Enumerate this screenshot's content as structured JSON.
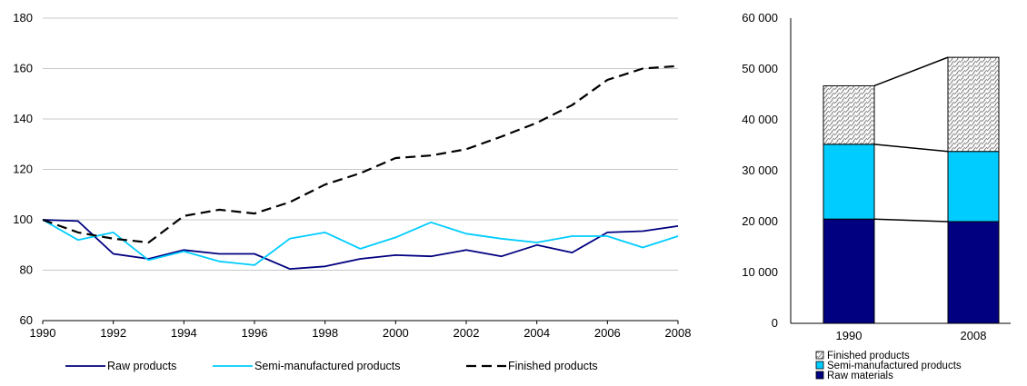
{
  "chart_data": [
    {
      "type": "line",
      "title": "",
      "xlabel": "",
      "ylabel": "",
      "ylim": [
        60,
        180
      ],
      "xlim": [
        1990,
        2008
      ],
      "grid": "horizontal",
      "legend_position": "bottom",
      "y_ticks": [
        "60",
        "80",
        "100",
        "120",
        "140",
        "160",
        "180"
      ],
      "x_ticks": [
        "1990",
        "1992",
        "1994",
        "1996",
        "1998",
        "2000",
        "2002",
        "2004",
        "2006",
        "2008"
      ],
      "x": [
        1990,
        1991,
        1992,
        1993,
        1994,
        1995,
        1996,
        1997,
        1998,
        1999,
        2000,
        2001,
        2002,
        2003,
        2004,
        2005,
        2006,
        2007,
        2008
      ],
      "series": [
        {
          "name": "Raw products",
          "color": "#000080",
          "style": "solid",
          "values": [
            100,
            99.5,
            86.5,
            84.5,
            88,
            86.5,
            86.5,
            80.5,
            81.5,
            84.5,
            86,
            85.5,
            88,
            85.5,
            90,
            87,
            95,
            95.5,
            97.5
          ]
        },
        {
          "name": "Semi-manufactured products",
          "color": "#00ccff",
          "style": "solid",
          "values": [
            100,
            92,
            95,
            84,
            87.5,
            83.5,
            82,
            92.5,
            95,
            88.5,
            93,
            99,
            94.5,
            92.5,
            91,
            93.5,
            93.5,
            89,
            93.5
          ]
        },
        {
          "name": "Finished products",
          "color": "#000000",
          "style": "dashed",
          "values": [
            100,
            95,
            92.5,
            91,
            101.5,
            104,
            102.5,
            107,
            114,
            118.5,
            124.5,
            125.5,
            128,
            133,
            138.5,
            145.5,
            155.5,
            160,
            161
          ]
        }
      ]
    },
    {
      "type": "bar",
      "stacked": true,
      "title": "",
      "xlabel": "",
      "ylabel": "",
      "ylim": [
        0,
        60000
      ],
      "grid": "none",
      "legend_position": "bottom",
      "y_ticks": [
        "0",
        "10 000",
        "20 000",
        "30 000",
        "40 000",
        "50 000",
        "60 000"
      ],
      "categories": [
        "1990",
        "2008"
      ],
      "series": [
        {
          "name": "Raw materials",
          "color": "#000080",
          "pattern": "solid",
          "values": [
            20500,
            20000
          ]
        },
        {
          "name": "Semi-manufactured products",
          "color": "#00ccff",
          "pattern": "solid",
          "values": [
            14700,
            13800
          ]
        },
        {
          "name": "Finished products",
          "color": "#ffffff",
          "pattern": "hatched",
          "values": [
            11500,
            18500
          ]
        }
      ],
      "legend_order": [
        "Finished products",
        "Semi-manufactured products",
        "Raw materials"
      ]
    }
  ]
}
